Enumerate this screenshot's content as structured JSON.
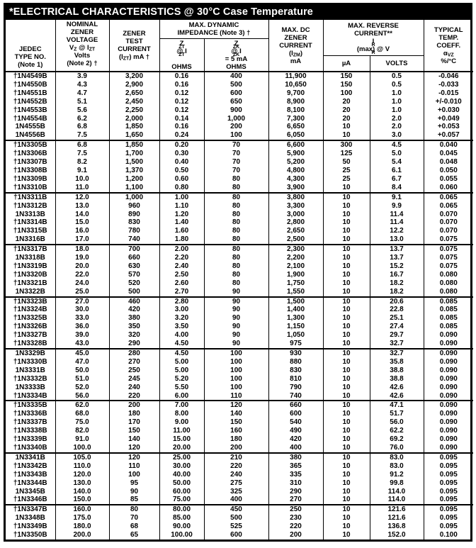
{
  "title": "*ELECTRICAL CHARACTERISTICS @ 30°C Case Temperature",
  "header": {
    "jedec_html": "JEDEC<br>TYPE NO.<br>(Note 1)",
    "nominal_html": "NOMINAL<br>ZENER<br>VOLTAGE<br>V<sub>Z</sub> @ I<sub>ZT</sub><br>Volts<br>(Note 2) †",
    "test_current_html": "ZENER<br>TEST<br>CURRENT<br>(I<sub>ZT</sub>) mA †",
    "dynamic_impedance_group_html": "MAX. DYNAMIC<br>IMPEDANCE (Note 3) †",
    "zzt_html": "Z<sub>ZT</sub> @ I<sub>ZT</sub><br>OHMS",
    "zzk_html": "Z<sub>ZK</sub> @ I<sub>ZK</sub> = 5 mA<br>OHMS",
    "izm_html": "MAX. DC<br>ZENER<br>CURRENT<br>(I<sub>ZM</sub>)<br>mA",
    "reverse_current_group_html": "MAX. REVERSE<br>CURRENT**<br>I<sub>R</sub>(max) @ V<sub>R</sub>",
    "microamp": "µA",
    "volts": "VOLTS",
    "temp_coeff_html": "TYPICAL<br>TEMP.<br>COEFF.<br>α<sub>VZ</sub><br>%/°C"
  },
  "table": {
    "column_keys": [
      "type",
      "vz",
      "izt",
      "zzt",
      "zzk",
      "izm",
      "ir_ua",
      "vr_volts",
      "temp_coeff"
    ],
    "groups": [
      {
        "rows": [
          [
            "†1N4549B",
            "3.9",
            "3,200",
            "0.16",
            "400",
            "11,900",
            "150",
            "0.5",
            "-0.046"
          ],
          [
            "†1N4550B",
            "4.3",
            "2,900",
            "0.16",
            "500",
            "10,650",
            "150",
            "0.5",
            "-0.033"
          ],
          [
            "†1N4551B",
            "4.7",
            "2,650",
            "0.12",
            "600",
            "9,700",
            "100",
            "1.0",
            "-0.015"
          ],
          [
            "†1N4552B",
            "5.1",
            "2,450",
            "0.12",
            "650",
            "8,900",
            "20",
            "1.0",
            "+/-0.010"
          ],
          [
            "†1N4553B",
            "5.6",
            "2,250",
            "0.12",
            "900",
            "8,100",
            "20",
            "1.0",
            "+0.030"
          ],
          [
            "†1N4554B",
            "6.2",
            "2,000",
            "0.14",
            "1,000",
            "7,300",
            "20",
            "2.0",
            "+0.049"
          ],
          [
            "1N4555B",
            "6.8",
            "1,850",
            "0.16",
            "200",
            "6,650",
            "10",
            "2.0",
            "+0.053"
          ],
          [
            "1N4556B",
            "7.5",
            "1,650",
            "0.24",
            "100",
            "6,050",
            "10",
            "3.0",
            "+0.057"
          ]
        ]
      },
      {
        "rows": [
          [
            "†1N3305B",
            "6.8",
            "1,850",
            "0.20",
            "70",
            "6,600",
            "300",
            "4.5",
            "0.040"
          ],
          [
            "†1N3306B",
            "7.5",
            "1,700",
            "0.30",
            "70",
            "5,900",
            "125",
            "5.0",
            "0.045"
          ],
          [
            "†1N3307B",
            "8.2",
            "1,500",
            "0.40",
            "70",
            "5,200",
            "50",
            "5.4",
            "0.048"
          ],
          [
            "†1N3308B",
            "9.1",
            "1,370",
            "0.50",
            "70",
            "4,800",
            "25",
            "6.1",
            "0.050"
          ],
          [
            "†1N3309B",
            "10.0",
            "1,200",
            "0.60",
            "80",
            "4,300",
            "25",
            "6.7",
            "0.055"
          ],
          [
            "†1N3310B",
            "11.0",
            "1,100",
            "0.80",
            "80",
            "3,900",
            "10",
            "8.4",
            "0.060"
          ]
        ]
      },
      {
        "rows": [
          [
            "†1N3311B",
            "12.0",
            "1,000",
            "1.00",
            "80",
            "3,800",
            "10",
            "9.1",
            "0.065"
          ],
          [
            "†1N3312B",
            "13.0",
            "960",
            "1.10",
            "80",
            "3,300",
            "10",
            "9.9",
            "0.065"
          ],
          [
            "1N3313B",
            "14.0",
            "890",
            "1.20",
            "80",
            "3,000",
            "10",
            "11.4",
            "0.070"
          ],
          [
            "†1N3314B",
            "15.0",
            "830",
            "1.40",
            "80",
            "2,800",
            "10",
            "11.4",
            "0.070"
          ],
          [
            "†1N3315B",
            "16.0",
            "780",
            "1.60",
            "80",
            "2,650",
            "10",
            "12.2",
            "0.070"
          ],
          [
            "1N3316B",
            "17.0",
            "740",
            "1.80",
            "80",
            "2,500",
            "10",
            "13.0",
            "0.075"
          ]
        ]
      },
      {
        "rows": [
          [
            "†1N3317B",
            "18.0",
            "700",
            "2.00",
            "80",
            "2,300",
            "10",
            "13.7",
            "0.075"
          ],
          [
            "1N3318B",
            "19.0",
            "660",
            "2.20",
            "80",
            "2,200",
            "10",
            "13.7",
            "0.075"
          ],
          [
            "†1N3319B",
            "20.0",
            "630",
            "2.40",
            "80",
            "2,100",
            "10",
            "15.2",
            "0.075"
          ],
          [
            "†1N3320B",
            "22.0",
            "570",
            "2.50",
            "80",
            "1,900",
            "10",
            "16.7",
            "0.080"
          ],
          [
            "†1N3321B",
            "24.0",
            "520",
            "2.60",
            "80",
            "1,750",
            "10",
            "18.2",
            "0.080"
          ],
          [
            "1N3322B",
            "25.0",
            "500",
            "2.70",
            "90",
            "1,550",
            "10",
            "18.2",
            "0.080"
          ]
        ]
      },
      {
        "rows": [
          [
            "†1N3323B",
            "27.0",
            "460",
            "2.80",
            "90",
            "1,500",
            "10",
            "20.6",
            "0.085"
          ],
          [
            "†1N3324B",
            "30.0",
            "420",
            "3.00",
            "90",
            "1,400",
            "10",
            "22.8",
            "0.085"
          ],
          [
            "†1N3325B",
            "33.0",
            "380",
            "3.20",
            "90",
            "1,300",
            "10",
            "25.1",
            "0.085"
          ],
          [
            "†1N3326B",
            "36.0",
            "350",
            "3.50",
            "90",
            "1,150",
            "10",
            "27.4",
            "0.085"
          ],
          [
            "†1N3327B",
            "39.0",
            "320",
            "4.00",
            "90",
            "1,050",
            "10",
            "29.7",
            "0.090"
          ],
          [
            "†1N3328B",
            "43.0",
            "290",
            "4.50",
            "90",
            "975",
            "10",
            "32.7",
            "0.090"
          ]
        ]
      },
      {
        "rows": [
          [
            "1N3329B",
            "45.0",
            "280",
            "4.50",
            "100",
            "930",
            "10",
            "32.7",
            "0.090"
          ],
          [
            "†1N3330B",
            "47.0",
            "270",
            "5.00",
            "100",
            "880",
            "10",
            "35.8",
            "0.090"
          ],
          [
            "1N3331B",
            "50.0",
            "250",
            "5.00",
            "100",
            "830",
            "10",
            "38.8",
            "0.090"
          ],
          [
            "†1N3332B",
            "51.0",
            "245",
            "5.20",
            "100",
            "810",
            "10",
            "38.8",
            "0.090"
          ],
          [
            "1N3333B",
            "52.0",
            "240",
            "5.50",
            "100",
            "790",
            "10",
            "42.6",
            "0.090"
          ],
          [
            "†1N3334B",
            "56.0",
            "220",
            "6.00",
            "110",
            "740",
            "10",
            "42.6",
            "0.090"
          ]
        ]
      },
      {
        "rows": [
          [
            "†1N3335B",
            "62.0",
            "200",
            "7.00",
            "120",
            "660",
            "10",
            "47.1",
            "0.090"
          ],
          [
            "†1N3336B",
            "68.0",
            "180",
            "8.00",
            "140",
            "600",
            "10",
            "51.7",
            "0.090"
          ],
          [
            "†1N3337B",
            "75.0",
            "170",
            "9.00",
            "150",
            "540",
            "10",
            "56.0",
            "0.090"
          ],
          [
            "†1N3338B",
            "82.0",
            "150",
            "11.00",
            "160",
            "490",
            "10",
            "62.2",
            "0.090"
          ],
          [
            "†1N3339B",
            "91.0",
            "140",
            "15.00",
            "180",
            "420",
            "10",
            "69.2",
            "0.090"
          ],
          [
            "†1N3340B",
            "100.0",
            "120",
            "20.00",
            "200",
            "400",
            "10",
            "76.0",
            "0.090"
          ]
        ]
      },
      {
        "rows": [
          [
            "1N3341B",
            "105.0",
            "120",
            "25.00",
            "210",
            "380",
            "10",
            "83.0",
            "0.095"
          ],
          [
            "†1N3342B",
            "110.0",
            "110",
            "30.00",
            "220",
            "365",
            "10",
            "83.0",
            "0.095"
          ],
          [
            "†1N3343B",
            "120.0",
            "100",
            "40.00",
            "240",
            "335",
            "10",
            "91.2",
            "0.095"
          ],
          [
            "†1N3344B",
            "130.0",
            "95",
            "50.00",
            "275",
            "310",
            "10",
            "99.8",
            "0.095"
          ],
          [
            "1N3345B",
            "140.0",
            "90",
            "60.00",
            "325",
            "290",
            "10",
            "114.0",
            "0.095"
          ],
          [
            "†1N3346B",
            "150.0",
            "85",
            "75.00",
            "400",
            "270",
            "10",
            "114.0",
            "0.095"
          ]
        ]
      },
      {
        "rows": [
          [
            "†1N3347B",
            "160.0",
            "80",
            "80.00",
            "450",
            "250",
            "10",
            "121.6",
            "0.095"
          ],
          [
            "1N3348B",
            "175.0",
            "70",
            "85.00",
            "500",
            "230",
            "10",
            "121.6",
            "0.095"
          ],
          [
            "†1N3349B",
            "180.0",
            "68",
            "90.00",
            "525",
            "220",
            "10",
            "136.8",
            "0.095"
          ],
          [
            "†1N3350B",
            "200.0",
            "65",
            "100.00",
            "600",
            "200",
            "10",
            "152.0",
            "0.100"
          ]
        ]
      }
    ]
  }
}
